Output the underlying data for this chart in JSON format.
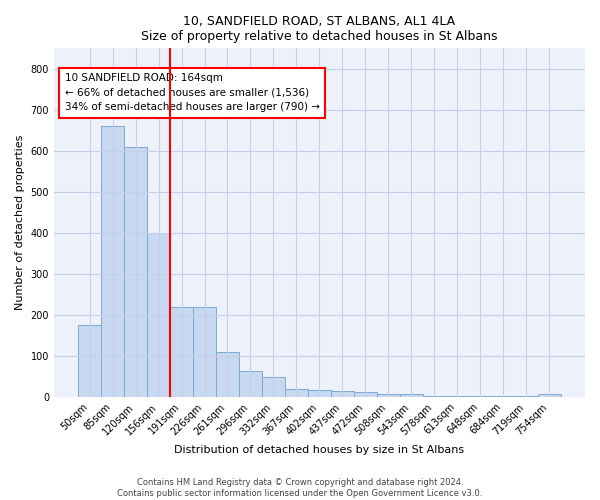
{
  "title1": "10, SANDFIELD ROAD, ST ALBANS, AL1 4LA",
  "title2": "Size of property relative to detached houses in St Albans",
  "xlabel": "Distribution of detached houses by size in St Albans",
  "ylabel": "Number of detached properties",
  "bar_labels": [
    "50sqm",
    "85sqm",
    "120sqm",
    "156sqm",
    "191sqm",
    "226sqm",
    "261sqm",
    "296sqm",
    "332sqm",
    "367sqm",
    "402sqm",
    "437sqm",
    "472sqm",
    "508sqm",
    "543sqm",
    "578sqm",
    "613sqm",
    "648sqm",
    "684sqm",
    "719sqm",
    "754sqm"
  ],
  "bar_values": [
    175,
    660,
    610,
    400,
    220,
    220,
    110,
    62,
    48,
    20,
    18,
    15,
    12,
    8,
    8,
    3,
    2,
    1,
    1,
    1,
    8
  ],
  "bar_color": "#c8d8f0",
  "bar_edge_color": "#7aaad4",
  "red_line_x": 3.5,
  "annotation_text": "10 SANDFIELD ROAD: 164sqm\n← 66% of detached houses are smaller (1,536)\n34% of semi-detached houses are larger (790) →",
  "annotation_box_color": "white",
  "annotation_border_color": "red",
  "vline_color": "red",
  "ylim": [
    0,
    850
  ],
  "yticks": [
    0,
    100,
    200,
    300,
    400,
    500,
    600,
    700,
    800
  ],
  "footer1": "Contains HM Land Registry data © Crown copyright and database right 2024.",
  "footer2": "Contains public sector information licensed under the Open Government Licence v3.0.",
  "bg_color": "#edf1fa",
  "grid_color": "#c5cfe8"
}
